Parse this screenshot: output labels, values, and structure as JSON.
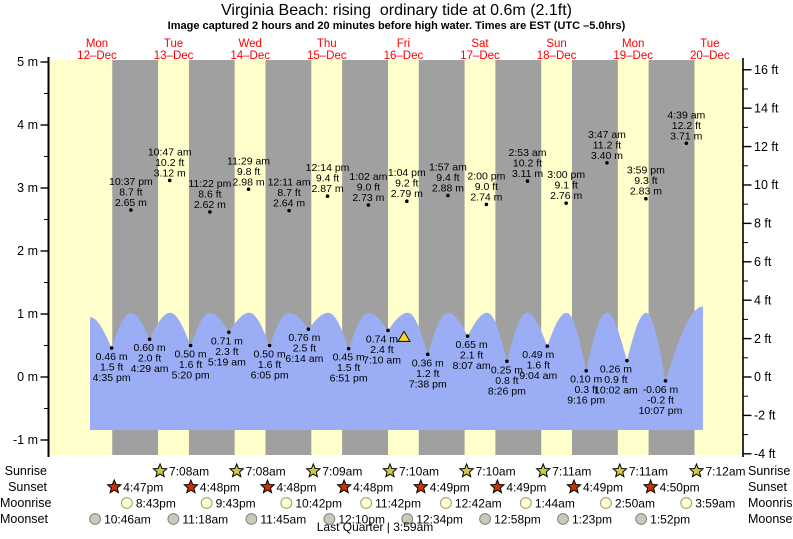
{
  "title": "Virginia Beach: rising  ordinary tide at 0.6m (2.1ft)",
  "subtitle": "Image captured 2 hours and 20 minutes before high water. Times are EST (UTC –5.0hrs)",
  "row_labels": {
    "sunrise": "Sunrise",
    "sunset": "Sunset",
    "moonrise": "Moonrise",
    "moonset": "Moonset"
  },
  "footer": {
    "moon_phase": "Last Quarter | 3:59am"
  },
  "colors": {
    "day_band": "#ffffcc",
    "night_band": "#a0a0a0",
    "tide_area": "#9badf4",
    "day_label": "#ff0000",
    "sunrise_star": "#cccc44",
    "sunset_star": "#cc3300",
    "moonrise_fill": "#ffffd0",
    "moonrise_stroke": "#9a9a72",
    "moonset_fill": "#c9c9ba",
    "moonset_stroke": "#808080",
    "marker_fill": "#ffd42a",
    "annotation_text": "#000000"
  },
  "chart_data": {
    "type": "area",
    "title": "Virginia Beach: rising  ordinary tide at 0.6m (2.1ft)",
    "y_axis_left": {
      "unit": "m",
      "major_ticks": [
        5,
        4,
        3,
        2,
        1,
        0,
        -1
      ],
      "labels": [
        "5 m",
        "4 m",
        "3 m",
        "2 m",
        "1 m",
        "0 m",
        "-1 m"
      ]
    },
    "y_axis_right": {
      "unit": "ft",
      "major_ticks": [
        16,
        14,
        12,
        10,
        8,
        6,
        4,
        2,
        0,
        -2,
        -4
      ],
      "labels": [
        "16 ft",
        "14 ft",
        "12 ft",
        "10 ft",
        "8 ft",
        "6 ft",
        "4 ft",
        "2 ft",
        "0 ft",
        "-2 ft",
        "-4 ft"
      ]
    },
    "days": [
      {
        "name": "Mon",
        "date": "12–Dec"
      },
      {
        "name": "Tue",
        "date": "13–Dec"
      },
      {
        "name": "Wed",
        "date": "14–Dec"
      },
      {
        "name": "Thu",
        "date": "15–Dec"
      },
      {
        "name": "Fri",
        "date": "16–Dec"
      },
      {
        "name": "Sat",
        "date": "17–Dec"
      },
      {
        "name": "Sun",
        "date": "18–Dec"
      },
      {
        "name": "Mon",
        "date": "19–Dec"
      },
      {
        "name": "Tue",
        "date": "20–Dec"
      }
    ],
    "high_tides": [
      {
        "time": "10:37 pm",
        "ft": "8.7 ft",
        "m": "2.65 m",
        "height_m": 2.65,
        "day": 0,
        "hour": 22.62
      },
      {
        "time": "10:47 am",
        "ft": "10.2 ft",
        "m": "3.12 m",
        "height_m": 3.12,
        "day": 1,
        "hour": 10.78
      },
      {
        "time": "11:22 pm",
        "ft": "8.6 ft",
        "m": "2.62 m",
        "height_m": 2.62,
        "day": 1,
        "hour": 23.37
      },
      {
        "time": "11:29 am",
        "ft": "9.8 ft",
        "m": "2.98 m",
        "height_m": 2.98,
        "day": 2,
        "hour": 11.48
      },
      {
        "time": "12:11 am",
        "ft": "8.7 ft",
        "m": "2.64 m",
        "height_m": 2.64,
        "day": 3,
        "hour": 0.18
      },
      {
        "time": "12:14 pm",
        "ft": "9.4 ft",
        "m": "2.87 m",
        "height_m": 2.87,
        "day": 3,
        "hour": 12.23
      },
      {
        "time": "1:02 am",
        "ft": "9.0 ft",
        "m": "2.73 m",
        "height_m": 2.73,
        "day": 4,
        "hour": 1.03
      },
      {
        "time": "1:04 pm",
        "ft": "9.2 ft",
        "m": "2.79 m",
        "height_m": 2.79,
        "day": 4,
        "hour": 13.07
      },
      {
        "time": "1:57 am",
        "ft": "9.4 ft",
        "m": "2.88 m",
        "height_m": 2.88,
        "day": 5,
        "hour": 1.95
      },
      {
        "time": "2:00 pm",
        "ft": "9.0 ft",
        "m": "2.74 m",
        "height_m": 2.74,
        "day": 5,
        "hour": 14.0
      },
      {
        "time": "2:53 am",
        "ft": "10.2 ft",
        "m": "3.11 m",
        "height_m": 3.11,
        "day": 6,
        "hour": 2.88
      },
      {
        "time": "3:00 pm",
        "ft": "9.1 ft",
        "m": "2.76 m",
        "height_m": 2.76,
        "day": 6,
        "hour": 15.0
      },
      {
        "time": "3:47 am",
        "ft": "11.2 ft",
        "m": "3.40 m",
        "height_m": 3.4,
        "day": 7,
        "hour": 3.78
      },
      {
        "time": "3:59 pm",
        "ft": "9.3 ft",
        "m": "2.83 m",
        "height_m": 2.83,
        "day": 7,
        "hour": 15.98
      },
      {
        "time": "4:39 am",
        "ft": "12.2 ft",
        "m": "3.71 m",
        "height_m": 3.71,
        "day": 8,
        "hour": 4.65
      }
    ],
    "low_tides": [
      {
        "m": "0.46 m",
        "ft": "1.5 ft",
        "time": "4:35 pm",
        "height_m": 0.46,
        "day": 0,
        "hour": 16.58
      },
      {
        "m": "0.60 m",
        "ft": "2.0 ft",
        "time": "4:29 am",
        "height_m": 0.6,
        "day": 1,
        "hour": 4.48
      },
      {
        "m": "0.50 m",
        "ft": "1.6 ft",
        "time": "5:20 pm",
        "height_m": 0.5,
        "day": 1,
        "hour": 17.33
      },
      {
        "m": "0.71 m",
        "ft": "2.3 ft",
        "time": "5:19 am",
        "height_m": 0.71,
        "day": 2,
        "hour": 5.32
      },
      {
        "m": "0.50 m",
        "ft": "1.6 ft",
        "time": "6:05 pm",
        "height_m": 0.5,
        "day": 2,
        "hour": 18.08
      },
      {
        "m": "0.76 m",
        "ft": "2.5 ft",
        "time": "6:14 am",
        "height_m": 0.76,
        "day": 3,
        "hour": 6.23
      },
      {
        "m": "0.45 m",
        "ft": "1.5 ft",
        "time": "6:51 pm",
        "height_m": 0.45,
        "day": 3,
        "hour": 18.85
      },
      {
        "m": "0.74 m",
        "ft": "2.4 ft",
        "time": "7:10 am",
        "height_m": 0.74,
        "day": 4,
        "hour": 7.17,
        "marker": true
      },
      {
        "m": "0.36 m",
        "ft": "1.2 ft",
        "time": "7:38 pm",
        "height_m": 0.36,
        "day": 4,
        "hour": 19.63
      },
      {
        "m": "0.65 m",
        "ft": "2.1 ft",
        "time": "8:07 am",
        "height_m": 0.65,
        "day": 5,
        "hour": 8.12
      },
      {
        "m": "0.25 m",
        "ft": "0.8 ft",
        "time": "8:26 pm",
        "height_m": 0.25,
        "day": 5,
        "hour": 20.43
      },
      {
        "m": "0.49 m",
        "ft": "1.6 ft",
        "time": "9:04 am",
        "height_m": 0.49,
        "day": 6,
        "hour": 9.07
      },
      {
        "m": "0.10 m",
        "ft": "0.3 ft",
        "time": "9:16 pm",
        "height_m": 0.1,
        "day": 6,
        "hour": 21.27
      },
      {
        "m": "0.26 m",
        "ft": "0.9 ft",
        "time": "10:02 am",
        "height_m": 0.26,
        "day": 7,
        "hour": 10.03
      },
      {
        "m": "-0.06 m",
        "ft": "-0.2 ft",
        "time": "10:07 pm",
        "height_m": -0.06,
        "day": 7,
        "hour": 22.12
      }
    ],
    "sun_events": {
      "sunrise": [
        {
          "time": "7:08am",
          "day": 1,
          "hour": 7.13
        },
        {
          "time": "7:08am",
          "day": 2,
          "hour": 7.13
        },
        {
          "time": "7:09am",
          "day": 3,
          "hour": 7.15
        },
        {
          "time": "7:10am",
          "day": 4,
          "hour": 7.17
        },
        {
          "time": "7:10am",
          "day": 5,
          "hour": 7.17
        },
        {
          "time": "7:11am",
          "day": 6,
          "hour": 7.18
        },
        {
          "time": "7:11am",
          "day": 7,
          "hour": 7.18
        },
        {
          "time": "7:12am",
          "day": 8,
          "hour": 7.2
        }
      ],
      "sunset": [
        {
          "time": "4:47pm",
          "day": 0,
          "hour": 16.78
        },
        {
          "time": "4:48pm",
          "day": 1,
          "hour": 16.8
        },
        {
          "time": "4:48pm",
          "day": 2,
          "hour": 16.8
        },
        {
          "time": "4:48pm",
          "day": 3,
          "hour": 16.8
        },
        {
          "time": "4:49pm",
          "day": 4,
          "hour": 16.82
        },
        {
          "time": "4:49pm",
          "day": 5,
          "hour": 16.82
        },
        {
          "time": "4:49pm",
          "day": 6,
          "hour": 16.82
        },
        {
          "time": "4:50pm",
          "day": 7,
          "hour": 16.83
        }
      ],
      "moonrise": [
        {
          "time": "8:43pm",
          "day": 0,
          "hour": 20.72
        },
        {
          "time": "9:43pm",
          "day": 1,
          "hour": 21.72
        },
        {
          "time": "10:42pm",
          "day": 2,
          "hour": 22.7
        },
        {
          "time": "11:42pm",
          "day": 3,
          "hour": 23.7
        },
        {
          "time": "12:42am",
          "day": 5,
          "hour": 0.7
        },
        {
          "time": "1:44am",
          "day": 6,
          "hour": 1.73
        },
        {
          "time": "2:50am",
          "day": 7,
          "hour": 2.83
        },
        {
          "time": "3:59am",
          "day": 8,
          "hour": 3.98
        }
      ],
      "moonset": [
        {
          "time": "10:46am",
          "day": 0,
          "hour": 10.77
        },
        {
          "time": "11:18am",
          "day": 1,
          "hour": 11.3
        },
        {
          "time": "11:45am",
          "day": 2,
          "hour": 11.75
        },
        {
          "time": "12:10pm",
          "day": 3,
          "hour": 12.17
        },
        {
          "time": "12:34pm",
          "day": 4,
          "hour": 12.57
        },
        {
          "time": "12:58pm",
          "day": 5,
          "hour": 12.97
        },
        {
          "time": "1:23pm",
          "day": 6,
          "hour": 13.38
        },
        {
          "time": "1:52pm",
          "day": 7,
          "hour": 13.87
        }
      ]
    }
  }
}
